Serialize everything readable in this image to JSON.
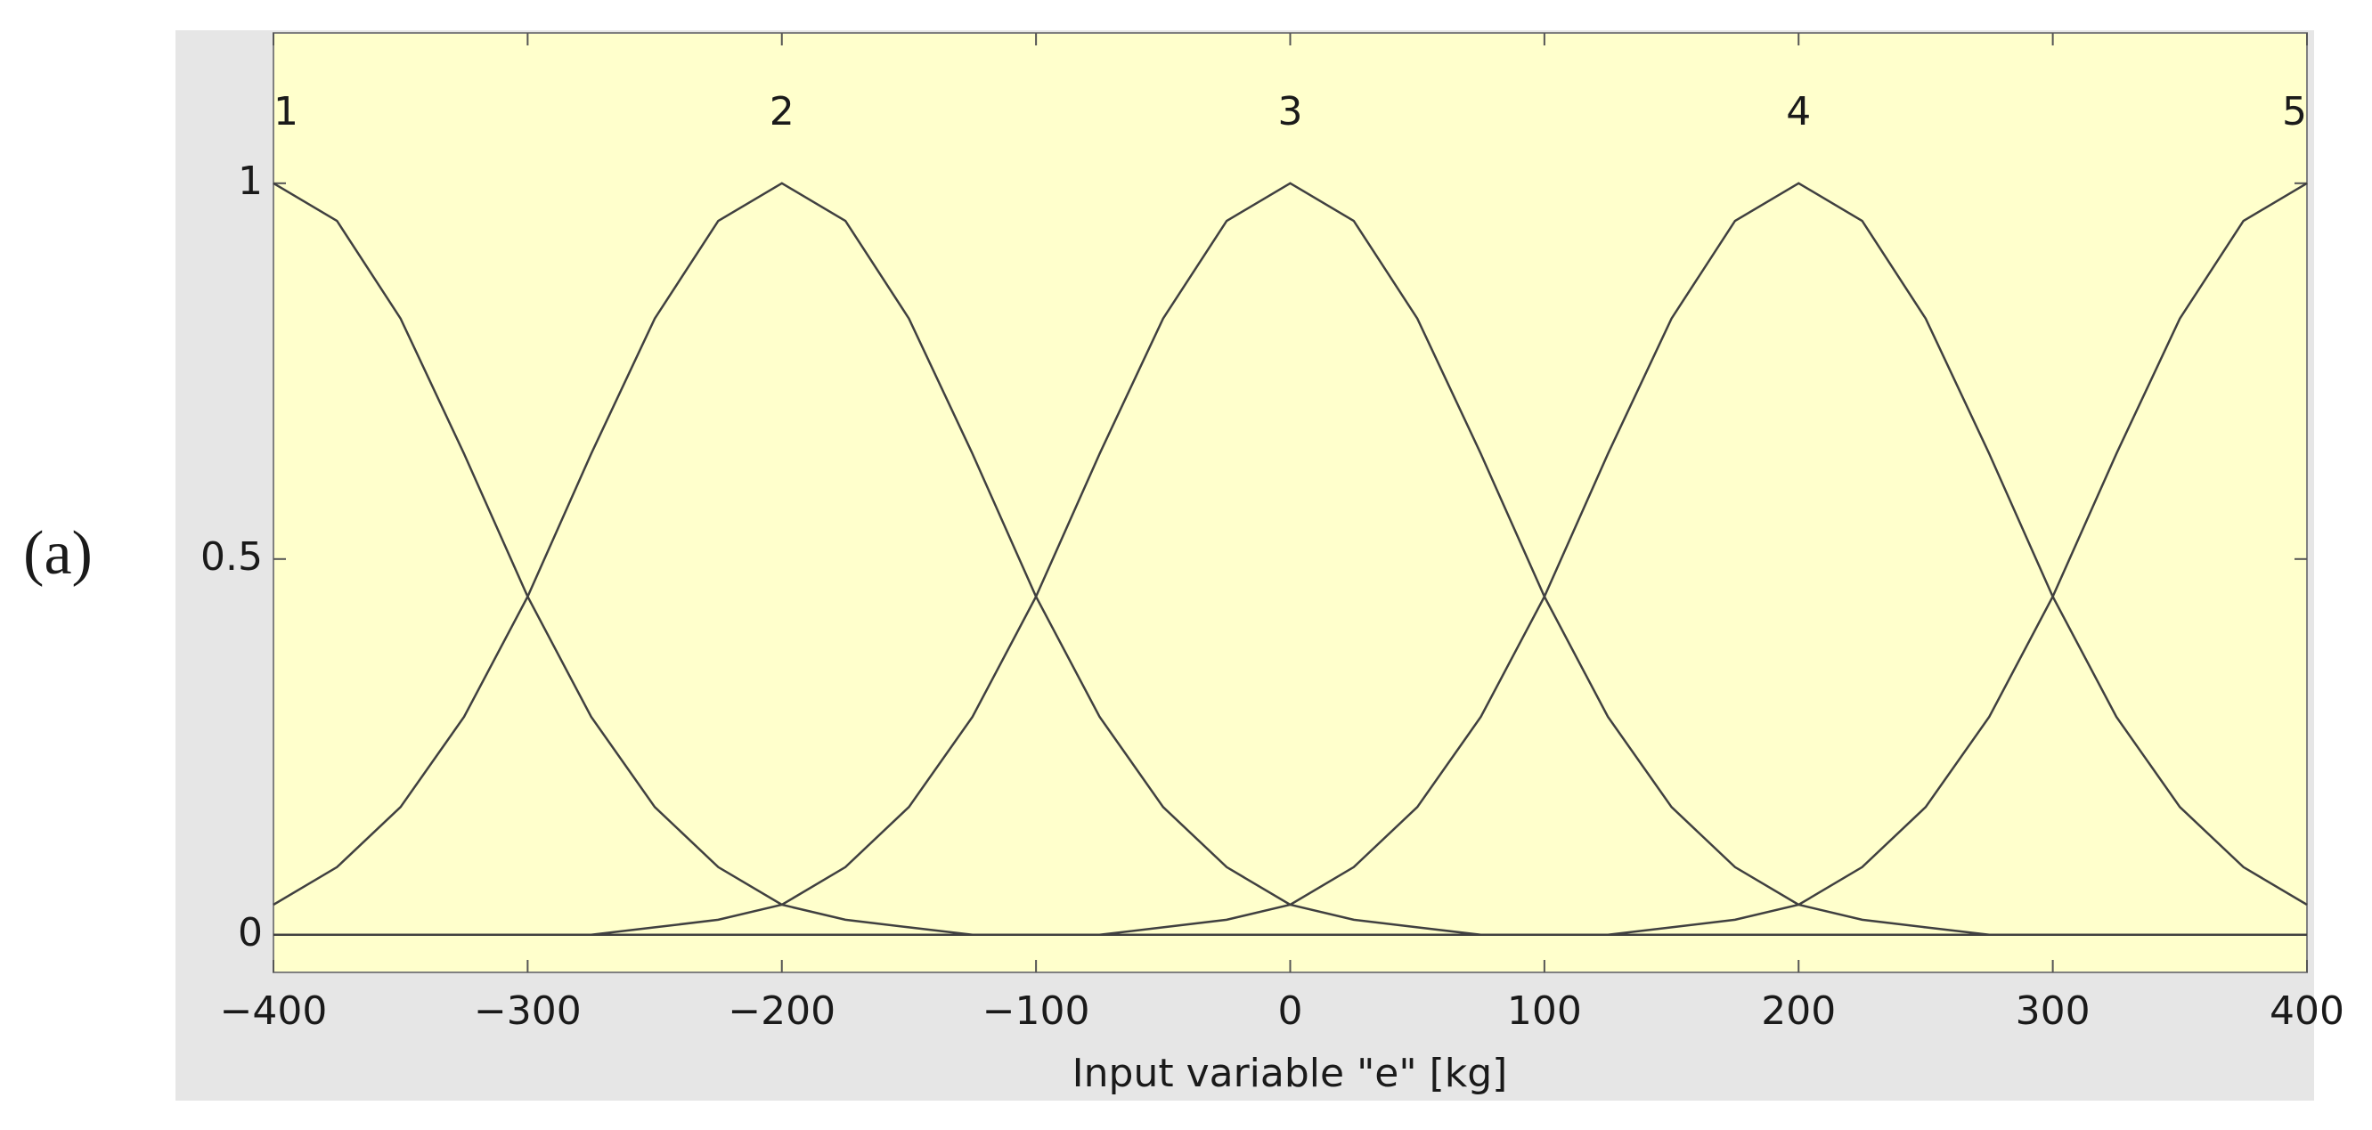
{
  "chart_data": {
    "type": "line",
    "panel_label": "(a)",
    "xlabel": "Input variable \"e\" [kg]",
    "x": [
      -400,
      -375,
      -350,
      -325,
      -300,
      -275,
      -250,
      -225,
      -200,
      -175,
      -150,
      -125,
      -100,
      -75,
      -50,
      -25,
      0,
      25,
      50,
      75,
      100,
      125,
      150,
      175,
      200,
      225,
      250,
      275,
      300,
      325,
      350,
      375,
      400
    ],
    "series": [
      {
        "name": "1",
        "color": "#404040",
        "values": [
          1,
          0.95,
          0.82,
          0.64,
          0.45,
          0.29,
          0.17,
          0.09,
          0.04,
          0.02,
          0.01,
          0,
          0,
          0,
          0,
          0,
          0,
          0,
          0,
          0,
          0,
          0,
          0,
          0,
          0,
          0,
          0,
          0,
          0,
          0,
          0,
          0,
          0
        ]
      },
      {
        "name": "2",
        "color": "#404040",
        "values": [
          0.04,
          0.09,
          0.17,
          0.29,
          0.45,
          0.64,
          0.82,
          0.95,
          1,
          0.95,
          0.82,
          0.64,
          0.45,
          0.29,
          0.17,
          0.09,
          0.04,
          0.02,
          0.01,
          0,
          0,
          0,
          0,
          0,
          0,
          0,
          0,
          0,
          0,
          0,
          0,
          0,
          0
        ]
      },
      {
        "name": "3",
        "color": "#404040",
        "values": [
          0,
          0,
          0,
          0,
          0,
          0,
          0.01,
          0.02,
          0.04,
          0.09,
          0.17,
          0.29,
          0.45,
          0.64,
          0.82,
          0.95,
          1,
          0.95,
          0.82,
          0.64,
          0.45,
          0.29,
          0.17,
          0.09,
          0.04,
          0.02,
          0.01,
          0,
          0,
          0,
          0,
          0,
          0
        ]
      },
      {
        "name": "4",
        "color": "#404040",
        "values": [
          0,
          0,
          0,
          0,
          0,
          0,
          0,
          0,
          0,
          0,
          0,
          0,
          0,
          0,
          0.01,
          0.02,
          0.04,
          0.09,
          0.17,
          0.29,
          0.45,
          0.64,
          0.82,
          0.95,
          1,
          0.95,
          0.82,
          0.64,
          0.45,
          0.29,
          0.17,
          0.09,
          0.04
        ]
      },
      {
        "name": "5",
        "color": "#404040",
        "values": [
          0,
          0,
          0,
          0,
          0,
          0,
          0,
          0,
          0,
          0,
          0,
          0,
          0,
          0,
          0,
          0,
          0,
          0,
          0,
          0,
          0,
          0,
          0.01,
          0.02,
          0.04,
          0.09,
          0.17,
          0.29,
          0.45,
          0.64,
          0.82,
          0.95,
          1
        ]
      }
    ],
    "xlim": [
      -400,
      400
    ],
    "ylim": [
      -0.05,
      1.2
    ],
    "xticks": [
      {
        "value": -400,
        "label": "−400"
      },
      {
        "value": -300,
        "label": "−300"
      },
      {
        "value": -200,
        "label": "−200"
      },
      {
        "value": -100,
        "label": "−100"
      },
      0,
      100,
      200,
      300,
      400
    ],
    "yticks": [
      0,
      0.5,
      1
    ],
    "plot_background": "#ffffcc",
    "panel_background": "#e6e6e6"
  }
}
